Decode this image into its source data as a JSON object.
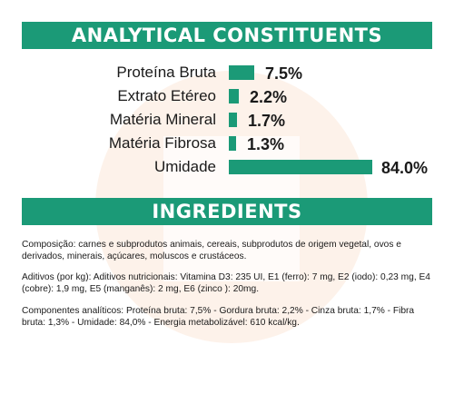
{
  "header": {
    "title": "ANALYTICAL CONSTITUENTS"
  },
  "constituents": [
    {
      "label": "Proteína Bruta",
      "value": "7.5%",
      "percent": 7.5
    },
    {
      "label": "Extrato Etéreo",
      "value": "2.2%",
      "percent": 2.2
    },
    {
      "label": "Matéria Mineral",
      "value": "1.7%",
      "percent": 1.7
    },
    {
      "label": "Matéria Fibrosa",
      "value": "1.3%",
      "percent": 1.3
    },
    {
      "label": "Umidade",
      "value": "84.0%",
      "percent": 84.0
    }
  ],
  "ingredients": {
    "title": "INGREDIENTS",
    "composition": "Composição: carnes e subprodutos animais, cereais, subprodutos de origem vegetal, ovos e derivados, minerais, açúcares, moluscos e crustáceos.",
    "additives": "Aditivos (por kg): Aditivos nutricionais: Vitamina D3: 235 UI, E1 (ferro): 7 mg, E2 (iodo): 0,23 mg, E4 (cobre): 1,9 mg, E5 (manganês): 2 mg, E6 (zinco ): 20mg.",
    "analytical_components": "Componentes analíticos: Proteína bruta: 7,5% - Gordura bruta: 2,2% - Cinza bruta: 1,7% - Fibra bruta: 1,3% - Umidade: 84,0% - Energia metabolizável: 610 kcal/kg."
  },
  "colors": {
    "accent": "#1b9a77",
    "watermark": "#fdf0e6"
  }
}
